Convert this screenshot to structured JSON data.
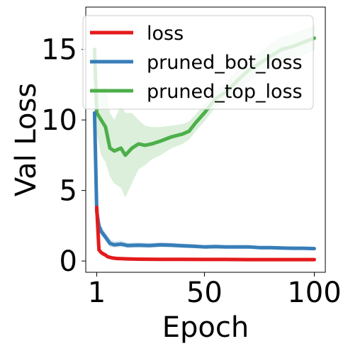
{
  "chart_data": {
    "type": "line",
    "title": "",
    "xlabel": "Epoch",
    "ylabel": "Val Loss",
    "xlim": [
      -4,
      105
    ],
    "ylim": [
      -0.8,
      18
    ],
    "xticks": [
      1,
      50,
      100
    ],
    "yticks": [
      0,
      5,
      10,
      15
    ],
    "grid": false,
    "legend_position": "top-left",
    "series": [
      {
        "name": "loss",
        "color": "#e41a1c",
        "x": [
          1,
          2,
          3,
          4,
          5,
          6,
          8,
          10,
          15,
          20,
          30,
          40,
          50,
          60,
          70,
          80,
          90,
          100
        ],
        "y": [
          3.8,
          0.8,
          0.6,
          0.5,
          0.42,
          0.3,
          0.22,
          0.18,
          0.15,
          0.13,
          0.12,
          0.12,
          0.11,
          0.11,
          0.1,
          0.1,
          0.1,
          0.1
        ],
        "band_lower": [
          3.6,
          0.7,
          0.5,
          0.4,
          0.35,
          0.25,
          0.18,
          0.15,
          0.12,
          0.11,
          0.1,
          0.1,
          0.09,
          0.09,
          0.09,
          0.09,
          0.09,
          0.09
        ],
        "band_upper": [
          4.0,
          0.9,
          0.7,
          0.6,
          0.5,
          0.35,
          0.26,
          0.21,
          0.18,
          0.15,
          0.14,
          0.14,
          0.13,
          0.13,
          0.12,
          0.12,
          0.12,
          0.12
        ]
      },
      {
        "name": "pruned_bot_loss",
        "color": "#377eb8",
        "x": [
          0,
          1,
          2,
          3,
          5,
          7,
          9,
          12,
          15,
          20,
          25,
          30,
          35,
          40,
          45,
          50,
          55,
          60,
          65,
          70,
          75,
          80,
          85,
          90,
          95,
          100
        ],
        "y": [
          10.5,
          3.5,
          2.5,
          2.1,
          1.7,
          1.25,
          1.15,
          1.2,
          1.1,
          1.12,
          1.1,
          1.15,
          1.12,
          1.08,
          1.05,
          1.0,
          1.02,
          1.0,
          1.0,
          1.0,
          0.95,
          0.95,
          0.92,
          0.9,
          0.9,
          0.88
        ],
        "band_lower": [
          10.0,
          3.1,
          2.1,
          1.8,
          1.4,
          1.0,
          0.95,
          1.0,
          0.92,
          0.95,
          0.93,
          0.98,
          0.96,
          0.93,
          0.9,
          0.87,
          0.88,
          0.87,
          0.87,
          0.87,
          0.83,
          0.83,
          0.8,
          0.79,
          0.79,
          0.78
        ],
        "band_upper": [
          11.0,
          3.9,
          2.9,
          2.5,
          2.0,
          1.55,
          1.4,
          1.45,
          1.3,
          1.32,
          1.28,
          1.32,
          1.29,
          1.24,
          1.2,
          1.14,
          1.16,
          1.13,
          1.13,
          1.13,
          1.07,
          1.07,
          1.04,
          1.01,
          1.01,
          0.99
        ]
      },
      {
        "name": "pruned_top_loss",
        "color": "#4daf4a",
        "x": [
          0,
          1,
          3,
          5,
          7,
          9,
          12,
          14,
          17,
          20,
          23,
          26,
          30,
          35,
          40,
          43,
          46,
          50,
          55,
          60,
          65,
          70,
          75,
          80,
          85,
          90,
          95,
          100
        ],
        "y": [
          15.0,
          10.5,
          10.0,
          9.5,
          8.0,
          7.8,
          8.0,
          7.5,
          8.0,
          8.3,
          8.2,
          8.3,
          8.5,
          8.8,
          9.0,
          9.2,
          9.8,
          10.5,
          11.5,
          12.0,
          12.8,
          13.5,
          14.0,
          14.5,
          15.0,
          15.2,
          15.5,
          15.8
        ],
        "band_lower": [
          14.0,
          9.0,
          7.5,
          7.0,
          6.0,
          5.5,
          5.2,
          4.5,
          5.5,
          6.5,
          6.8,
          7.2,
          7.5,
          8.0,
          8.3,
          8.6,
          9.2,
          9.9,
          10.9,
          11.3,
          12.0,
          12.7,
          13.2,
          13.6,
          14.1,
          14.3,
          14.6,
          14.9
        ],
        "band_upper": [
          15.5,
          12.0,
          12.0,
          12.5,
          10.5,
          10.0,
          11.0,
          10.5,
          10.5,
          10.0,
          9.6,
          9.5,
          9.5,
          9.6,
          9.7,
          9.9,
          10.4,
          11.1,
          12.1,
          12.7,
          13.6,
          14.3,
          14.8,
          15.4,
          15.9,
          16.1,
          16.4,
          16.7
        ]
      }
    ]
  }
}
